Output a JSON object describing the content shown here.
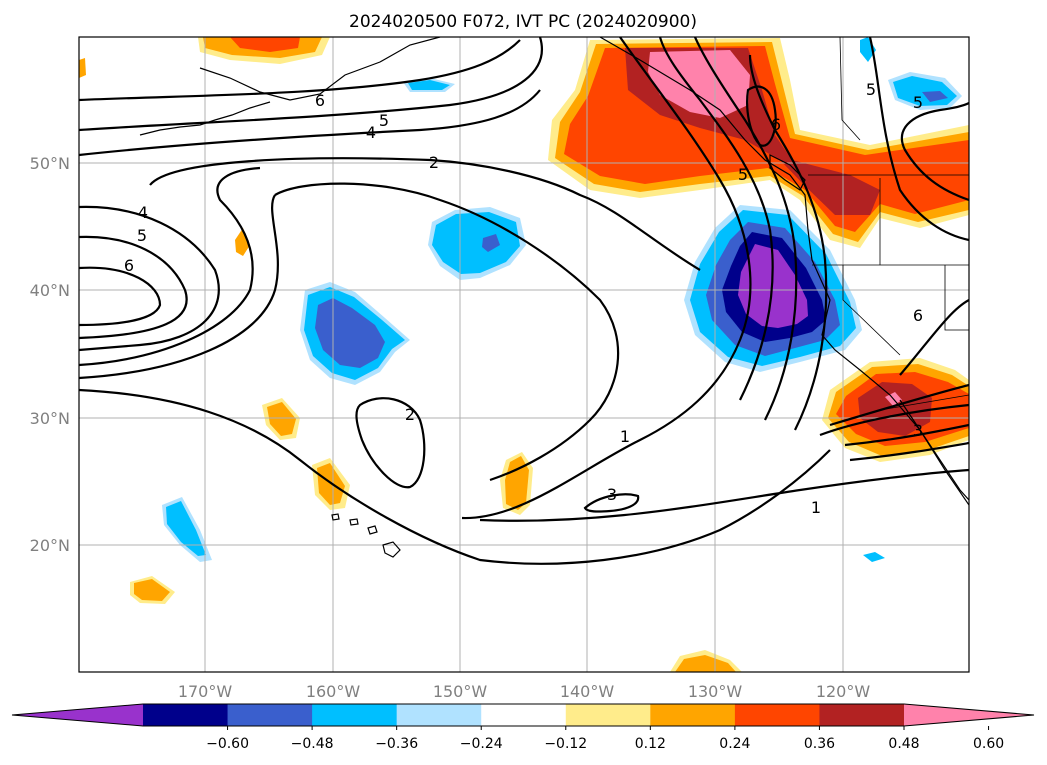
{
  "title": "2024020500 F072, IVT PC (2024020900)",
  "map": {
    "lon_labels": [
      "170°W",
      "160°W",
      "150°W",
      "140°W",
      "130°W",
      "120°W"
    ],
    "lat_labels": [
      "50°N",
      "40°N",
      "30°N",
      "20°N"
    ]
  },
  "contour_labels": [
    "6",
    "5",
    "4",
    "2",
    "4",
    "5",
    "6",
    "5",
    "5",
    "6",
    "5",
    "6",
    "2",
    "1",
    "3",
    "1",
    "3"
  ],
  "colorbar": {
    "colors": [
      "#9932cc",
      "#00008b",
      "#3a5fcd",
      "#00bfff",
      "#b0e2ff",
      "#ffffff",
      "#ffec8b",
      "#ffa500",
      "#ff4500",
      "#b22222",
      "#ff82ab"
    ],
    "tick_labels": [
      "−0.60",
      "−0.48",
      "−0.36",
      "−0.24",
      "−0.12",
      "0.12",
      "0.24",
      "0.36",
      "0.48",
      "0.60"
    ]
  }
}
